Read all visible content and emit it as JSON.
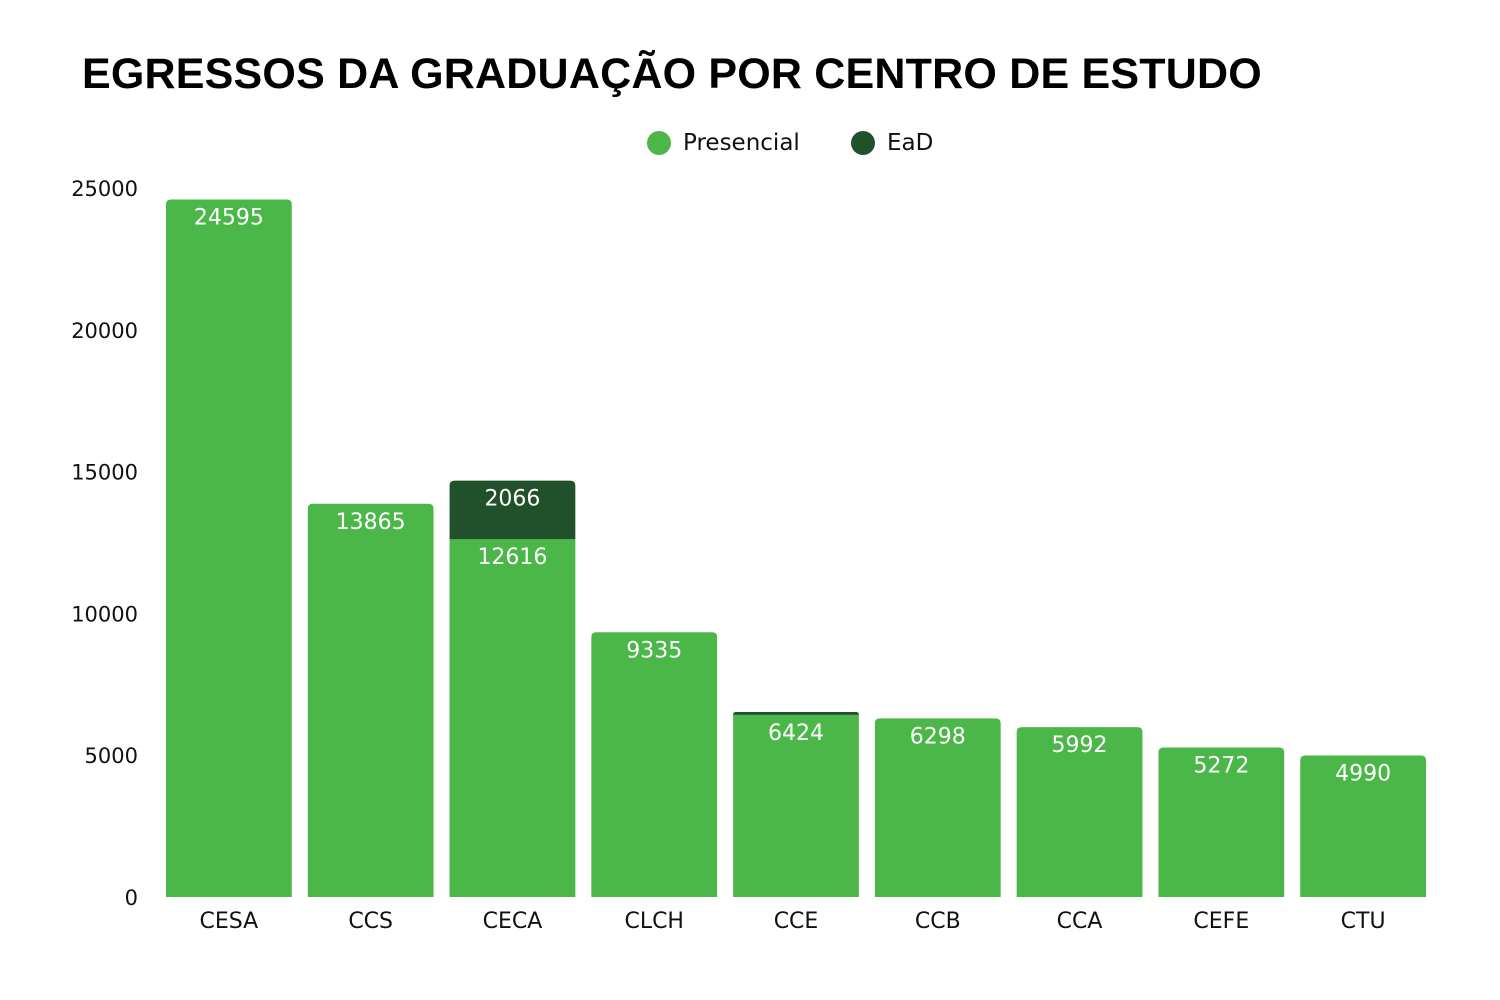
{
  "chart_data": {
    "type": "bar",
    "stacked": true,
    "title": "EGRESSOS DA GRADUAÇÃO POR CENTRO DE ESTUDO",
    "xlabel": "",
    "ylabel": "",
    "ylim": [
      0,
      25000
    ],
    "yticks": [
      "0",
      "5000",
      "10000",
      "15000",
      "20000",
      "25000"
    ],
    "grid": false,
    "legend_position": "top-center",
    "categories": [
      "CESA",
      "CCS",
      "CECA",
      "CLCH",
      "CCE",
      "CCB",
      "CCA",
      "CEFE",
      "CTU"
    ],
    "series": [
      {
        "name": "Presencial",
        "color": "#4cb749",
        "values": [
          24595,
          13865,
          12616,
          9335,
          6424,
          6298,
          5992,
          5272,
          4990
        ],
        "labels": [
          "24595",
          "13865",
          "12616",
          "9335",
          "6424",
          "6298",
          "5992",
          "5272",
          "4990"
        ]
      },
      {
        "name": "EaD",
        "color": "#20512b",
        "values": [
          0,
          0,
          2066,
          0,
          100,
          0,
          0,
          0,
          0
        ],
        "labels": [
          "",
          "",
          "2066",
          "",
          "",
          "",
          "",
          "",
          ""
        ]
      }
    ]
  }
}
